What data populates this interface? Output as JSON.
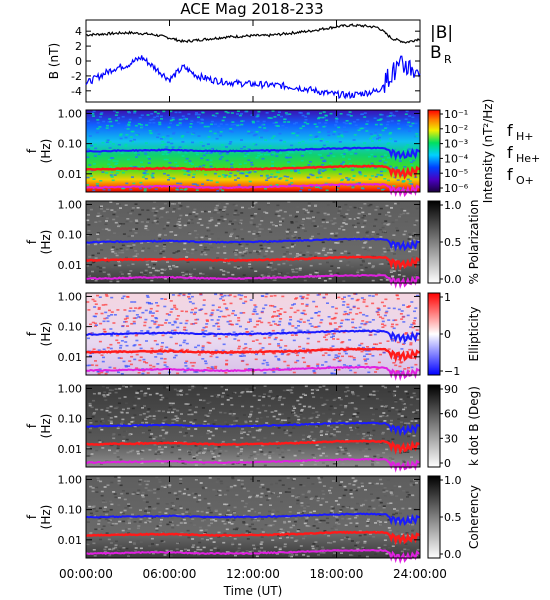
{
  "title": "ACE Mag 2018-233",
  "colors": {
    "B_total": "#000000",
    "B_R": "#0000ff",
    "f_H": "#1a1aff",
    "f_He": "#ff1a1a",
    "f_O": "#e020e0"
  },
  "chart_data": [
    {
      "panel": "magnetic-field",
      "type": "line",
      "ylabel": "B (nT)",
      "ylim": [
        -5.5,
        5.5
      ],
      "yticks": [
        "4",
        "2",
        "0",
        "-2",
        "-4"
      ],
      "x_hours": [
        0,
        1,
        2,
        3,
        4,
        5,
        6,
        7,
        8,
        9,
        10,
        11,
        12,
        13,
        14,
        15,
        16,
        17,
        18,
        19,
        20,
        21,
        22,
        23,
        24
      ],
      "series": [
        {
          "name": "|B|",
          "values": [
            3.5,
            3.6,
            3.7,
            3.8,
            3.7,
            3.5,
            3.1,
            2.6,
            2.8,
            3.0,
            3.2,
            3.3,
            3.4,
            3.4,
            3.6,
            3.8,
            4.0,
            4.3,
            4.6,
            4.8,
            4.7,
            4.5,
            3.0,
            2.5,
            3.0
          ]
        },
        {
          "name": "B_R",
          "values": [
            -3.0,
            -2.0,
            -1.0,
            -0.5,
            0.5,
            -1.0,
            -2.5,
            -0.8,
            -2.0,
            -2.5,
            -2.8,
            -3.0,
            -3.1,
            -3.2,
            -3.3,
            -3.5,
            -3.8,
            -4.2,
            -4.5,
            -4.6,
            -4.3,
            -4.0,
            -1.5,
            -0.5,
            -2.0
          ]
        }
      ],
      "legend": [
        "|B|",
        "B",
        "R"
      ]
    },
    {
      "panel": "intensity",
      "type": "heatmap",
      "ylabel": "f (Hz)",
      "yticks": [
        "1.00",
        "0.10",
        "0.01"
      ],
      "colorbar": {
        "label": "Intensity (nT²/Hz)",
        "ticks": [
          "10⁻¹",
          "10⁻²",
          "10⁻³",
          "10⁻⁴",
          "10⁻⁵",
          "10⁻⁶"
        ]
      },
      "legend": [
        "f",
        "H+",
        "f",
        "He+",
        "f",
        "O+"
      ]
    },
    {
      "panel": "polarization",
      "type": "heatmap",
      "ylabel": "f (Hz)",
      "yticks": [
        "1.00",
        "0.10",
        "0.01"
      ],
      "colorbar": {
        "label": "% Polarization",
        "ticks": [
          "1.0",
          "0.5",
          "0.0"
        ]
      }
    },
    {
      "panel": "ellipticity",
      "type": "heatmap",
      "ylabel": "f (Hz)",
      "yticks": [
        "1.00",
        "0.10",
        "0.01"
      ],
      "colorbar": {
        "label": "Ellipticity",
        "ticks": [
          "1",
          "0",
          "−1"
        ]
      }
    },
    {
      "panel": "k-dot-b",
      "type": "heatmap",
      "ylabel": "f (Hz)",
      "yticks": [
        "1.00",
        "0.10",
        "0.01"
      ],
      "colorbar": {
        "label": "k dot B (Deg)",
        "ticks": [
          "90",
          "60",
          "30",
          "0"
        ]
      }
    },
    {
      "panel": "coherency",
      "type": "heatmap",
      "ylabel": "f (Hz)",
      "yticks": [
        "1.00",
        "0.10",
        "0.01"
      ],
      "colorbar": {
        "label": "Coherency",
        "ticks": [
          "1.0",
          "0.5",
          "0.0"
        ]
      }
    }
  ],
  "gyrofrequency_lines": {
    "x_hours": [
      0,
      2,
      4,
      6,
      8,
      10,
      12,
      14,
      16,
      18,
      20,
      21.5,
      22,
      23,
      24
    ],
    "f_H+": [
      0.055,
      0.058,
      0.06,
      0.062,
      0.058,
      0.056,
      0.058,
      0.06,
      0.065,
      0.07,
      0.072,
      0.07,
      0.05,
      0.04,
      0.055
    ],
    "f_He+": [
      0.014,
      0.0145,
      0.015,
      0.0155,
      0.0145,
      0.014,
      0.0145,
      0.015,
      0.016,
      0.0175,
      0.018,
      0.0175,
      0.0125,
      0.01,
      0.014
    ],
    "f_O+": [
      0.0035,
      0.0036,
      0.0038,
      0.0039,
      0.0036,
      0.0035,
      0.0036,
      0.0038,
      0.0041,
      0.0044,
      0.0045,
      0.0044,
      0.0031,
      0.0025,
      0.0035
    ]
  },
  "x_axis": {
    "label": "Time (UT)",
    "ticks": [
      "00:00:00",
      "06:00:00",
      "12:00:00",
      "18:00:00",
      "24:00:00"
    ]
  }
}
